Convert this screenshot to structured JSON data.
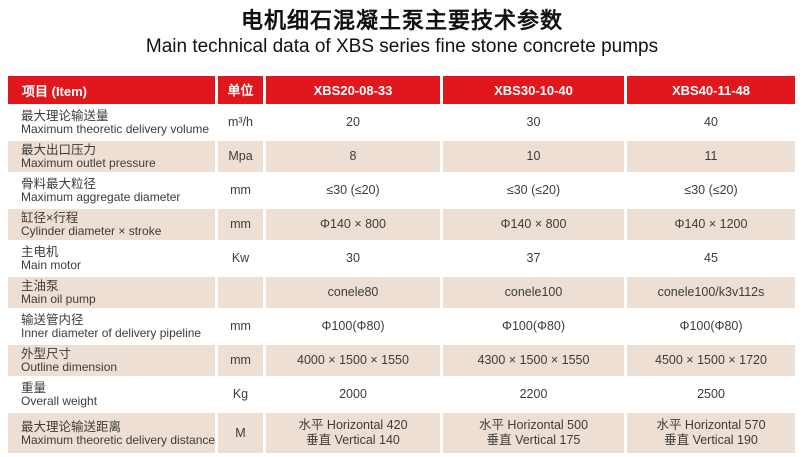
{
  "colors": {
    "header_red": "#e1171e",
    "row_beige": "#eddfd3",
    "text_dark": "#3c3c3c",
    "title_black": "#111111"
  },
  "page": {
    "title_zh": "电机细石混凝土泵主要技术参数",
    "title_en": "Main technical data of XBS series fine stone concrete pumps"
  },
  "table": {
    "header": [
      "项目  (Item)",
      "单位",
      "XBS20-08-33",
      "XBS30-10-40",
      "XBS40-11-48"
    ],
    "rows": [
      {
        "zh": "最大理论输送量",
        "en": "Maximum theoretic delivery volume",
        "unit": "m³/h",
        "v1": "20",
        "v2": "30",
        "v3": "40"
      },
      {
        "zh": "最大出口压力",
        "en": "Maximum outlet pressure",
        "unit": "Mpa",
        "v1": "8",
        "v2": "10",
        "v3": "11"
      },
      {
        "zh": "骨料最大粒径",
        "en": "Maximum aggregate diameter",
        "unit": "mm",
        "v1": "≤30 (≤20)",
        "v2": "≤30 (≤20)",
        "v3": "≤30 (≤20)"
      },
      {
        "zh": "缸径×行程",
        "en": "Cylinder diameter × stroke",
        "unit": "mm",
        "v1": "Φ140 × 800",
        "v2": "Φ140 × 800",
        "v3": "Φ140 × 1200"
      },
      {
        "zh": "主电机",
        "en": "Main motor",
        "unit": "Kw",
        "v1": "30",
        "v2": "37",
        "v3": "45"
      },
      {
        "zh": "主油泵",
        "en": "Main oil pump",
        "unit": "",
        "v1": "conele80",
        "v2": "conele100",
        "v3": "conele100/k3v112s"
      },
      {
        "zh": "输送管内径",
        "en": "Inner diameter of delivery pipeline",
        "unit": "mm",
        "v1": "Φ100(Φ80)",
        "v2": "Φ100(Φ80)",
        "v3": "Φ100(Φ80)"
      },
      {
        "zh": "外型尺寸",
        "en": "Outline dimension",
        "unit": "mm",
        "v1": "4000 × 1500 × 1550",
        "v2": "4300 × 1500 × 1550",
        "v3": "4500 × 1500 × 1720"
      },
      {
        "zh": "重量",
        "en": "Overall weight",
        "unit": "Kg",
        "v1": "2000",
        "v2": "2200",
        "v3": "2500"
      },
      {
        "zh": "最大理论输送距离",
        "en": "Maximum theoretic delivery distance",
        "unit": "M",
        "v1": "水平 Horizontal 420\n垂直 Vertical 140",
        "v2": "水平 Horizontal 500\n垂直 Vertical 175",
        "v3": "水平 Horizontal 570\n垂直 Vertical 190"
      }
    ]
  }
}
